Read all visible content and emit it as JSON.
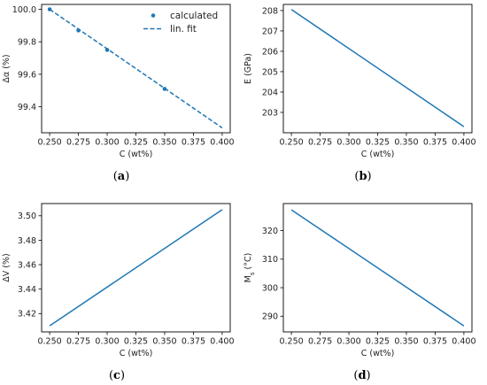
{
  "colors": {
    "series": "#1f77b4",
    "frame": "#000000",
    "text": "#222222"
  },
  "chart_data": [
    {
      "id": "a",
      "type": "scatter",
      "caption": "(a)",
      "xlabel": "C (wt%)",
      "ylabel": "Δα (%)",
      "xlim": [
        0.243,
        0.407
      ],
      "ylim": [
        99.24,
        100.03
      ],
      "xticks": [
        0.25,
        0.275,
        0.3,
        0.325,
        0.35,
        0.375,
        0.4
      ],
      "xtick_labels": [
        "0.250",
        "0.275",
        "0.300",
        "0.325",
        "0.350",
        "0.375",
        "0.400"
      ],
      "yticks": [
        99.4,
        99.6,
        99.8,
        100.0
      ],
      "ytick_labels": [
        "99.4",
        "99.6",
        "99.8",
        "100.0"
      ],
      "legend_position": "top-right",
      "series": [
        {
          "name": "calculated",
          "style": "points",
          "x": [
            0.25,
            0.275,
            0.3,
            0.35
          ],
          "y": [
            100.0,
            99.87,
            99.75,
            99.51
          ]
        },
        {
          "name": "lin. fit",
          "style": "dashed-line",
          "x": [
            0.25,
            0.4
          ],
          "y": [
            100.0,
            99.27
          ]
        }
      ]
    },
    {
      "id": "b",
      "type": "line",
      "caption": "(b)",
      "xlabel": "C (wt%)",
      "ylabel": "E (GPa)",
      "xlim": [
        0.243,
        0.407
      ],
      "ylim": [
        202.0,
        208.3
      ],
      "xticks": [
        0.25,
        0.275,
        0.3,
        0.325,
        0.35,
        0.375,
        0.4
      ],
      "xtick_labels": [
        "0.250",
        "0.275",
        "0.300",
        "0.325",
        "0.350",
        "0.375",
        "0.400"
      ],
      "yticks": [
        203,
        204,
        205,
        206,
        207,
        208
      ],
      "ytick_labels": [
        "203",
        "204",
        "205",
        "206",
        "207",
        "208"
      ],
      "series": [
        {
          "style": "line",
          "x": [
            0.25,
            0.4
          ],
          "y": [
            208.05,
            202.3
          ]
        }
      ]
    },
    {
      "id": "c",
      "type": "line",
      "caption": "(c)",
      "xlabel": "C (wt%)",
      "ylabel": "ΔV (%)",
      "xlim": [
        0.243,
        0.407
      ],
      "ylim": [
        3.405,
        3.51
      ],
      "xticks": [
        0.25,
        0.275,
        0.3,
        0.325,
        0.35,
        0.375,
        0.4
      ],
      "xtick_labels": [
        "0.250",
        "0.275",
        "0.300",
        "0.325",
        "0.350",
        "0.375",
        "0.400"
      ],
      "yticks": [
        3.42,
        3.44,
        3.46,
        3.48,
        3.5
      ],
      "ytick_labels": [
        "3.42",
        "3.44",
        "3.46",
        "3.48",
        "3.50"
      ],
      "series": [
        {
          "style": "line",
          "x": [
            0.25,
            0.4
          ],
          "y": [
            3.41,
            3.505
          ]
        }
      ]
    },
    {
      "id": "d",
      "type": "line",
      "caption": "(d)",
      "xlabel": "C (wt%)",
      "ylabel": "M_s (°C)",
      "ylabel_main": "M",
      "ylabel_sub": "s",
      "ylabel_rest": " (°C)",
      "xlim": [
        0.243,
        0.407
      ],
      "ylim": [
        284.5,
        329.5
      ],
      "xticks": [
        0.25,
        0.275,
        0.3,
        0.325,
        0.35,
        0.375,
        0.4
      ],
      "xtick_labels": [
        "0.250",
        "0.275",
        "0.300",
        "0.325",
        "0.350",
        "0.375",
        "0.400"
      ],
      "yticks": [
        290,
        300,
        310,
        320
      ],
      "ytick_labels": [
        "290",
        "300",
        "310",
        "320"
      ],
      "series": [
        {
          "style": "line",
          "x": [
            0.25,
            0.4
          ],
          "y": [
            327.3,
            286.6
          ]
        }
      ]
    }
  ]
}
